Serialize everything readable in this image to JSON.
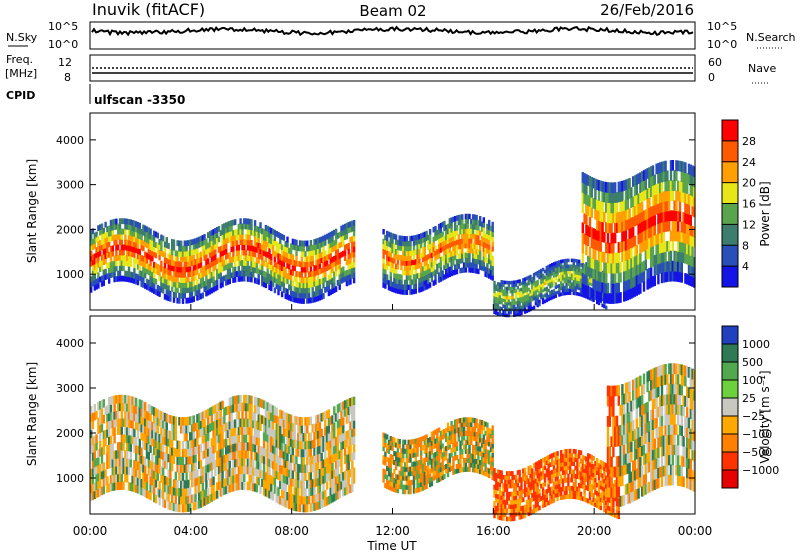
{
  "header": {
    "station": "Inuvik (fitACF)",
    "beam": "Beam 02",
    "date": "26/Feb/2016"
  },
  "strip_labels": {
    "nsky": "N.Sky",
    "nsearch": "N.Search",
    "freq": "Freq.",
    "freq_unit": "[MHz]",
    "nave": "Nave",
    "cpid": "CPID",
    "cpid_value": "ulfscan -3350",
    "noise_ticks": [
      "10^5",
      "10^0"
    ],
    "freq_ticks": [
      "12",
      "8"
    ],
    "nave_ticks": [
      "60",
      "0"
    ]
  },
  "colors": {
    "power_scale": [
      "#1414e6",
      "#2a4fb8",
      "#3d7d6e",
      "#5aa44e",
      "#e6e619",
      "#ff9f00",
      "#ff5a00",
      "#ff0000"
    ],
    "velocity_scale": [
      "#2040c0",
      "#2f7a55",
      "#52a84e",
      "#6cd13c",
      "#c8c8c0",
      "#ffa800",
      "#ff7f00",
      "#ff3300",
      "#e60000"
    ]
  },
  "chart_data": [
    {
      "type": "heatmap",
      "name": "power",
      "ylabel": "Slant Range [km]",
      "xlabel": "",
      "x_ticks": [
        "00:00",
        "04:00",
        "08:00",
        "12:00",
        "16:00",
        "20:00",
        "00:00"
      ],
      "y_ticks": [
        1000,
        2000,
        3000,
        4000
      ],
      "xlim_hours": [
        0,
        24
      ],
      "ylim": [
        200,
        4600
      ],
      "colorbar": {
        "label": "Power [dB]",
        "ticks": [
          4,
          8,
          12,
          16,
          20,
          24,
          28
        ],
        "range": [
          0,
          30
        ]
      },
      "echo_bands": [
        {
          "t": [
            0.0,
            10.5
          ],
          "range_km": [
            600,
            2000
          ],
          "peak_db": 28
        },
        {
          "t": [
            11.6,
            16.0
          ],
          "range_km": [
            800,
            2100
          ],
          "peak_db": 26
        },
        {
          "t": [
            16.0,
            20.5
          ],
          "range_km": [
            300,
            1100
          ],
          "peak_db": 16
        },
        {
          "t": [
            19.5,
            24.0
          ],
          "range_km": [
            600,
            3300
          ],
          "peak_db": 28
        }
      ]
    },
    {
      "type": "heatmap",
      "name": "velocity",
      "ylabel": "Slant Range [km]",
      "xlabel": "Time UT",
      "x_ticks": [
        "00:00",
        "04:00",
        "08:00",
        "12:00",
        "16:00",
        "20:00",
        "00:00"
      ],
      "y_ticks": [
        1000,
        2000,
        3000,
        4000
      ],
      "xlim_hours": [
        0,
        24
      ],
      "ylim": [
        200,
        4600
      ],
      "colorbar": {
        "label": "Velocity [m s⁻¹]",
        "ticks": [
          "1000",
          "500",
          "100",
          "25",
          "−25",
          "−100",
          "−500",
          "−1000"
        ]
      },
      "echo_bands": [
        {
          "t": [
            0.0,
            10.5
          ],
          "range_km": [
            500,
            2600
          ],
          "dominant": "orange / green mix"
        },
        {
          "t": [
            11.6,
            16.0
          ],
          "range_km": [
            900,
            2100
          ],
          "dominant": "−100 to −500"
        },
        {
          "t": [
            16.0,
            21.0
          ],
          "range_km": [
            300,
            1400
          ],
          "dominant": "−500"
        },
        {
          "t": [
            20.5,
            24.0
          ],
          "range_km": [
            600,
            3300
          ],
          "dominant": "orange / gray mix"
        }
      ]
    }
  ]
}
